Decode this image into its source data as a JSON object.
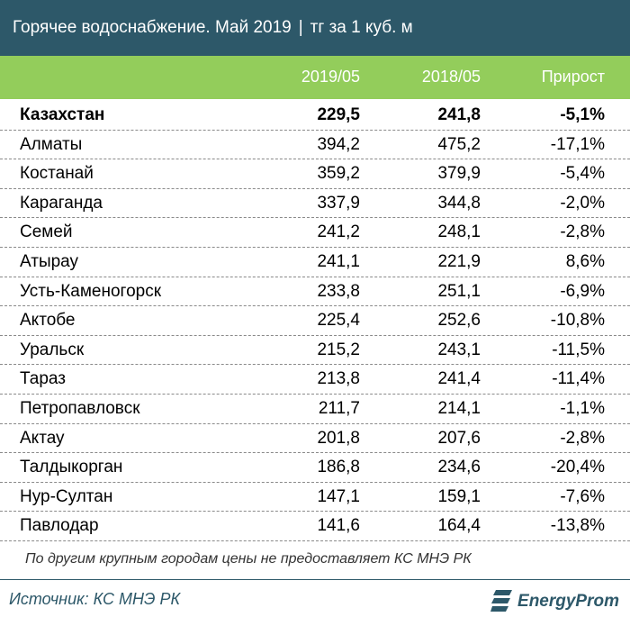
{
  "header": {
    "title": "Горячее водоснабжение. Май 2019",
    "separator": "|",
    "unit": "тг за 1 куб. м"
  },
  "chart_data": {
    "type": "table",
    "columns": [
      "2019/05",
      "2018/05",
      "Прирост"
    ],
    "rows": [
      {
        "name": "Казахстан",
        "v2019": "229,5",
        "v2018": "241,8",
        "growth": "-5,1%",
        "bold": true
      },
      {
        "name": "Алматы",
        "v2019": "394,2",
        "v2018": "475,2",
        "growth": "-17,1%"
      },
      {
        "name": "Костанай",
        "v2019": "359,2",
        "v2018": "379,9",
        "growth": "-5,4%"
      },
      {
        "name": "Караганда",
        "v2019": "337,9",
        "v2018": "344,8",
        "growth": "-2,0%"
      },
      {
        "name": "Семей",
        "v2019": "241,2",
        "v2018": "248,1",
        "growth": "-2,8%"
      },
      {
        "name": "Атырау",
        "v2019": "241,1",
        "v2018": "221,9",
        "growth": "8,6%"
      },
      {
        "name": "Усть-Каменогорск",
        "v2019": "233,8",
        "v2018": "251,1",
        "growth": "-6,9%"
      },
      {
        "name": "Актобе",
        "v2019": "225,4",
        "v2018": "252,6",
        "growth": "-10,8%"
      },
      {
        "name": "Уральск",
        "v2019": "215,2",
        "v2018": "243,1",
        "growth": "-11,5%"
      },
      {
        "name": "Тараз",
        "v2019": "213,8",
        "v2018": "241,4",
        "growth": "-11,4%"
      },
      {
        "name": "Петропавловск",
        "v2019": "211,7",
        "v2018": "214,1",
        "growth": "-1,1%"
      },
      {
        "name": "Актау",
        "v2019": "201,8",
        "v2018": "207,6",
        "growth": "-2,8%"
      },
      {
        "name": "Талдыкорган",
        "v2019": "186,8",
        "v2018": "234,6",
        "growth": "-20,4%"
      },
      {
        "name": "Нур-Султан",
        "v2019": "147,1",
        "v2018": "159,1",
        "growth": "-7,6%"
      },
      {
        "name": "Павлодар",
        "v2019": "141,6",
        "v2018": "164,4",
        "growth": "-13,8%"
      }
    ]
  },
  "note": "По другим крупным городам цены не предоставляет КС МНЭ РК",
  "source": "Источник: КС МНЭ РК",
  "logo": {
    "text": "EnergyProm",
    "icon": "energyprom-logo-icon"
  },
  "colors": {
    "title_bg": "#2d5869",
    "header_bg": "#93cd5b",
    "accent": "#2d5869"
  }
}
